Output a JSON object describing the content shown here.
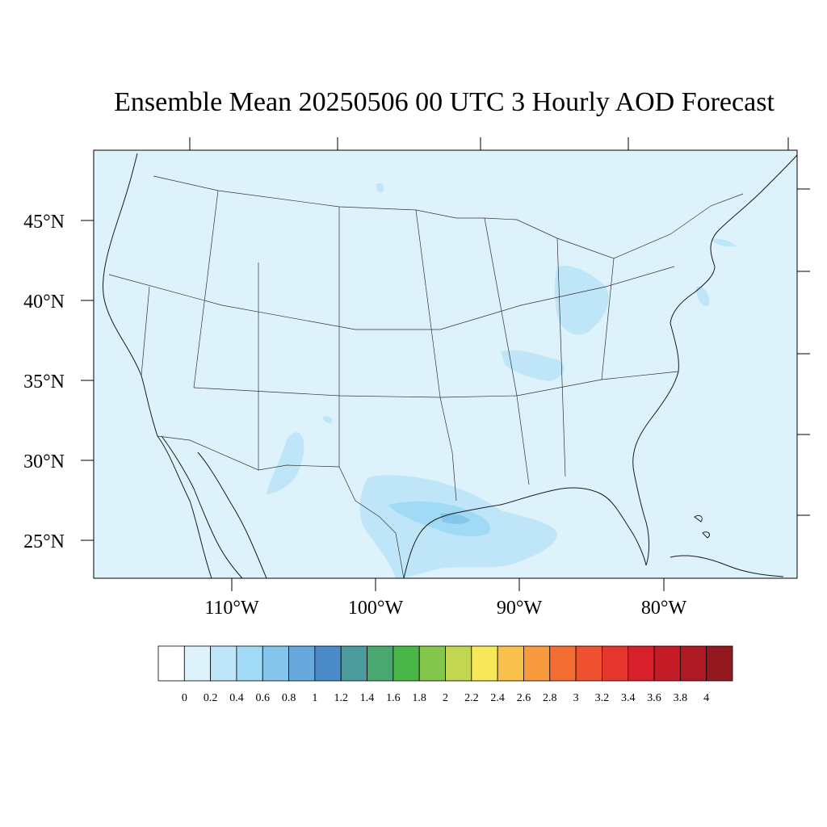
{
  "title": "Ensemble Mean 20250506 00 UTC 3 Hourly AOD Forecast",
  "map": {
    "background_color": "#def2fb",
    "lat_labels": [
      "45°N",
      "40°N",
      "35°N",
      "30°N",
      "25°N"
    ],
    "lon_labels": [
      "110°W",
      "100°W",
      "90°W",
      "80°W"
    ]
  },
  "colorbar": {
    "colors": [
      "#ffffff",
      "#def2fb",
      "#bfe6f8",
      "#a0daf4",
      "#86c6ec",
      "#68a9dd",
      "#4a8bc9",
      "#4b9a9c",
      "#49a86f",
      "#49b748",
      "#84c54c",
      "#c2d652",
      "#f7e85a",
      "#f9c04b",
      "#f89a3e",
      "#f46d33",
      "#ee5230",
      "#e5372d",
      "#d8202a",
      "#c41b27",
      "#ad1a24",
      "#941820"
    ],
    "labels": [
      "0",
      "0.2",
      "0.4",
      "0.6",
      "0.8",
      "1",
      "1.2",
      "1.4",
      "1.6",
      "1.8",
      "2",
      "2.2",
      "2.4",
      "2.6",
      "2.8",
      "3",
      "3.2",
      "3.4",
      "3.6",
      "3.8",
      "4"
    ]
  }
}
